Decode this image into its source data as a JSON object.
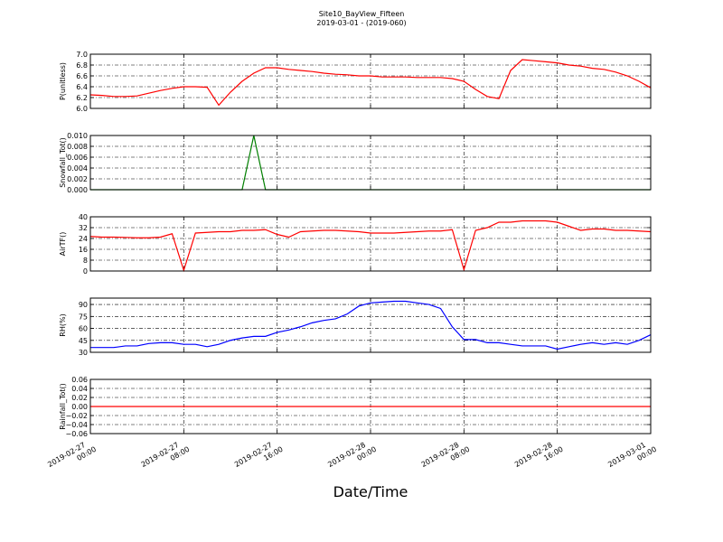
{
  "chart_data": [
    {
      "type": "line",
      "title": "Site10_BayView_Fifteen",
      "subtitle": "2019-03-01 - (2019-060)",
      "ylabel": "P(unitless)",
      "xlim": [
        "2019-02-27 00:00",
        "2019-03-01 00:00"
      ],
      "ylim": [
        6.0,
        7.0
      ],
      "yticks": [
        {
          "value": 6.0,
          "label": "6.0"
        },
        {
          "value": 6.2,
          "label": "6.2"
        },
        {
          "value": 6.4,
          "label": "6.4"
        },
        {
          "value": 6.6,
          "label": "6.6"
        },
        {
          "value": 6.8,
          "label": "6.8"
        },
        {
          "value": 7.0,
          "label": "7.0"
        }
      ],
      "grid": true,
      "color": "#ff0000",
      "x": [
        "2019-02-27 00:00",
        "2019-02-27 01:00",
        "2019-02-27 02:00",
        "2019-02-27 03:00",
        "2019-02-27 04:00",
        "2019-02-27 05:00",
        "2019-02-27 06:00",
        "2019-02-27 07:00",
        "2019-02-27 08:00",
        "2019-02-27 09:00",
        "2019-02-27 10:00",
        "2019-02-27 11:00",
        "2019-02-27 12:00",
        "2019-02-27 13:00",
        "2019-02-27 14:00",
        "2019-02-27 15:00",
        "2019-02-27 16:00",
        "2019-02-27 17:00",
        "2019-02-27 18:00",
        "2019-02-27 19:00",
        "2019-02-27 20:00",
        "2019-02-27 21:00",
        "2019-02-27 22:00",
        "2019-02-27 23:00",
        "2019-02-28 00:00",
        "2019-02-28 01:00",
        "2019-02-28 02:00",
        "2019-02-28 03:00",
        "2019-02-28 04:00",
        "2019-02-28 05:00",
        "2019-02-28 06:00",
        "2019-02-28 07:00",
        "2019-02-28 08:00",
        "2019-02-28 09:00",
        "2019-02-28 10:00",
        "2019-02-28 11:00",
        "2019-02-28 12:00",
        "2019-02-28 13:00",
        "2019-02-28 14:00",
        "2019-02-28 15:00",
        "2019-02-28 16:00",
        "2019-02-28 17:00",
        "2019-02-28 18:00",
        "2019-02-28 19:00",
        "2019-02-28 20:00",
        "2019-02-28 21:00",
        "2019-02-28 22:00",
        "2019-02-28 23:00",
        "2019-03-01 00:00"
      ],
      "values": [
        6.25,
        6.24,
        6.22,
        6.22,
        6.23,
        6.28,
        6.33,
        6.37,
        6.4,
        6.4,
        6.39,
        6.06,
        6.3,
        6.5,
        6.65,
        6.75,
        6.75,
        6.72,
        6.7,
        6.68,
        6.65,
        6.63,
        6.62,
        6.6,
        6.6,
        6.58,
        6.58,
        6.58,
        6.57,
        6.57,
        6.57,
        6.55,
        6.5,
        6.35,
        6.22,
        6.18,
        6.7,
        6.9,
        6.88,
        6.86,
        6.84,
        6.8,
        6.78,
        6.74,
        6.72,
        6.67,
        6.6,
        6.5,
        6.38
      ]
    },
    {
      "type": "line",
      "ylabel": "Snowfall_Tot()",
      "xlim": [
        "2019-02-27 00:00",
        "2019-03-01 00:00"
      ],
      "ylim": [
        0,
        0.01
      ],
      "yticks": [
        {
          "value": 0,
          "label": "0.000"
        },
        {
          "value": 0.002,
          "label": "0.002"
        },
        {
          "value": 0.004,
          "label": "0.004"
        },
        {
          "value": 0.006,
          "label": "0.006"
        },
        {
          "value": 0.008,
          "label": "0.008"
        },
        {
          "value": 0.01,
          "label": "0.010"
        }
      ],
      "grid": true,
      "color": "#007f00",
      "x": [
        "2019-02-27 00:00",
        "2019-02-27 01:00",
        "2019-02-27 02:00",
        "2019-02-27 03:00",
        "2019-02-27 04:00",
        "2019-02-27 05:00",
        "2019-02-27 06:00",
        "2019-02-27 07:00",
        "2019-02-27 08:00",
        "2019-02-27 09:00",
        "2019-02-27 10:00",
        "2019-02-27 11:00",
        "2019-02-27 12:00",
        "2019-02-27 13:00",
        "2019-02-27 14:00",
        "2019-02-27 15:00",
        "2019-02-27 16:00",
        "2019-02-27 17:00",
        "2019-02-27 18:00",
        "2019-02-27 19:00",
        "2019-02-27 20:00",
        "2019-02-27 21:00",
        "2019-02-27 22:00",
        "2019-02-27 23:00",
        "2019-02-28 00:00",
        "2019-02-28 01:00",
        "2019-02-28 02:00",
        "2019-02-28 03:00",
        "2019-02-28 04:00",
        "2019-02-28 05:00",
        "2019-02-28 06:00",
        "2019-02-28 07:00",
        "2019-02-28 08:00",
        "2019-02-28 09:00",
        "2019-02-28 10:00",
        "2019-02-28 11:00",
        "2019-02-28 12:00",
        "2019-02-28 13:00",
        "2019-02-28 14:00",
        "2019-02-28 15:00",
        "2019-02-28 16:00",
        "2019-02-28 17:00",
        "2019-02-28 18:00",
        "2019-02-28 19:00",
        "2019-02-28 20:00",
        "2019-02-28 21:00",
        "2019-02-28 22:00",
        "2019-02-28 23:00",
        "2019-03-01 00:00"
      ],
      "values": [
        0,
        0,
        0,
        0,
        0,
        0,
        0,
        0,
        0,
        0,
        0,
        0,
        0,
        0,
        0.01,
        0,
        0,
        0,
        0,
        0,
        0,
        0,
        0,
        0,
        0,
        0,
        0,
        0,
        0,
        0,
        0,
        0,
        0,
        0,
        0,
        0,
        0,
        0,
        0,
        0,
        0,
        0,
        0,
        0,
        0,
        0,
        0,
        0,
        0
      ]
    },
    {
      "type": "line",
      "ylabel": "AirTF()",
      "xlim": [
        "2019-02-27 00:00",
        "2019-03-01 00:00"
      ],
      "ylim": [
        0,
        40
      ],
      "yticks": [
        0,
        8,
        16,
        24,
        32,
        40
      ],
      "grid": true,
      "color": "#ff0000",
      "x": [
        "2019-02-27 00:00",
        "2019-02-27 01:00",
        "2019-02-27 02:00",
        "2019-02-27 03:00",
        "2019-02-27 04:00",
        "2019-02-27 05:00",
        "2019-02-27 06:00",
        "2019-02-27 07:00",
        "2019-02-27 08:00",
        "2019-02-27 09:00",
        "2019-02-27 10:00",
        "2019-02-27 11:00",
        "2019-02-27 12:00",
        "2019-02-27 13:00",
        "2019-02-27 14:00",
        "2019-02-27 15:00",
        "2019-02-27 16:00",
        "2019-02-27 17:00",
        "2019-02-27 18:00",
        "2019-02-27 19:00",
        "2019-02-27 20:00",
        "2019-02-27 21:00",
        "2019-02-27 22:00",
        "2019-02-27 23:00",
        "2019-02-28 00:00",
        "2019-02-28 01:00",
        "2019-02-28 02:00",
        "2019-02-28 03:00",
        "2019-02-28 04:00",
        "2019-02-28 05:00",
        "2019-02-28 06:00",
        "2019-02-28 07:00",
        "2019-02-28 08:00",
        "2019-02-28 09:00",
        "2019-02-28 10:00",
        "2019-02-28 11:00",
        "2019-02-28 12:00",
        "2019-02-28 13:00",
        "2019-02-28 14:00",
        "2019-02-28 15:00",
        "2019-02-28 16:00",
        "2019-02-28 17:00",
        "2019-02-28 18:00",
        "2019-02-28 19:00",
        "2019-02-28 20:00",
        "2019-02-28 21:00",
        "2019-02-28 22:00",
        "2019-02-28 23:00",
        "2019-03-01 00:00"
      ],
      "values": [
        25.5,
        25,
        25,
        24.8,
        24.5,
        24.5,
        25,
        27.5,
        0.5,
        28,
        28.5,
        29,
        29,
        30,
        30,
        30.5,
        27,
        25,
        29,
        29.5,
        30,
        30,
        29.5,
        29,
        28,
        28,
        28,
        28.5,
        29,
        29.5,
        29.5,
        30.5,
        1,
        30,
        32,
        36,
        36,
        37,
        37,
        37,
        36,
        33,
        30,
        31,
        31,
        30,
        30,
        29.5,
        29
      ]
    },
    {
      "type": "line",
      "ylabel": "RH(%)",
      "xlim": [
        "2019-02-27 00:00",
        "2019-03-01 00:00"
      ],
      "ylim": [
        30,
        98
      ],
      "yticks": [
        30,
        45,
        60,
        75,
        90
      ],
      "grid": true,
      "color": "#0000ff",
      "x": [
        "2019-02-27 00:00",
        "2019-02-27 01:00",
        "2019-02-27 02:00",
        "2019-02-27 03:00",
        "2019-02-27 04:00",
        "2019-02-27 05:00",
        "2019-02-27 06:00",
        "2019-02-27 07:00",
        "2019-02-27 08:00",
        "2019-02-27 09:00",
        "2019-02-27 10:00",
        "2019-02-27 11:00",
        "2019-02-27 12:00",
        "2019-02-27 13:00",
        "2019-02-27 14:00",
        "2019-02-27 15:00",
        "2019-02-27 16:00",
        "2019-02-27 17:00",
        "2019-02-27 18:00",
        "2019-02-27 19:00",
        "2019-02-27 20:00",
        "2019-02-27 21:00",
        "2019-02-27 22:00",
        "2019-02-27 23:00",
        "2019-02-28 00:00",
        "2019-02-28 01:00",
        "2019-02-28 02:00",
        "2019-02-28 03:00",
        "2019-02-28 04:00",
        "2019-02-28 05:00",
        "2019-02-28 06:00",
        "2019-02-28 07:00",
        "2019-02-28 08:00",
        "2019-02-28 09:00",
        "2019-02-28 10:00",
        "2019-02-28 11:00",
        "2019-02-28 12:00",
        "2019-02-28 13:00",
        "2019-02-28 14:00",
        "2019-02-28 15:00",
        "2019-02-28 16:00",
        "2019-02-28 17:00",
        "2019-02-28 18:00",
        "2019-02-28 19:00",
        "2019-02-28 20:00",
        "2019-02-28 21:00",
        "2019-02-28 22:00",
        "2019-02-28 23:00",
        "2019-03-01 00:00"
      ],
      "values": [
        36,
        36,
        36,
        38,
        38,
        41,
        42,
        42,
        40,
        40,
        37,
        40,
        45,
        48,
        50,
        50,
        55,
        58,
        62,
        67,
        70,
        72,
        78,
        88,
        92,
        93,
        94,
        94,
        92,
        90,
        85,
        62,
        46,
        46,
        42,
        42,
        40,
        38,
        38,
        38,
        34,
        37,
        40,
        42,
        40,
        42,
        40,
        45,
        52
      ]
    },
    {
      "type": "line",
      "ylabel": "Rainfall_Tot()",
      "xlabel": "Date/Time",
      "xlim": [
        "2019-02-27 00:00",
        "2019-03-01 00:00"
      ],
      "ylim": [
        -0.06,
        0.06
      ],
      "yticks": [
        {
          "value": -0.06,
          "label": "−0.06"
        },
        {
          "value": -0.04,
          "label": "−0.04"
        },
        {
          "value": -0.02,
          "label": "−0.02"
        },
        {
          "value": 0,
          "label": "0.00"
        },
        {
          "value": 0.02,
          "label": "0.02"
        },
        {
          "value": 0.04,
          "label": "0.04"
        },
        {
          "value": 0.06,
          "label": "0.06"
        }
      ],
      "xticks": [
        {
          "value": "2019-02-27 00:00",
          "label": "2019-02-27\n00:00"
        },
        {
          "value": "2019-02-27 08:00",
          "label": "2019-02-27\n08:00"
        },
        {
          "value": "2019-02-27 16:00",
          "label": "2019-02-27\n16:00"
        },
        {
          "value": "2019-02-28 00:00",
          "label": "2019-02-28\n00:00"
        },
        {
          "value": "2019-02-28 08:00",
          "label": "2019-02-28\n08:00"
        },
        {
          "value": "2019-02-28 16:00",
          "label": "2019-02-28\n16:00"
        },
        {
          "value": "2019-03-01 00:00",
          "label": "2019-03-01\n00:00"
        }
      ],
      "grid": true,
      "color": "#ff0000",
      "x": [
        "2019-02-27 00:00",
        "2019-02-27 01:00",
        "2019-02-27 02:00",
        "2019-02-27 03:00",
        "2019-02-27 04:00",
        "2019-02-27 05:00",
        "2019-02-27 06:00",
        "2019-02-27 07:00",
        "2019-02-27 08:00",
        "2019-02-27 09:00",
        "2019-02-27 10:00",
        "2019-02-27 11:00",
        "2019-02-27 12:00",
        "2019-02-27 13:00",
        "2019-02-27 14:00",
        "2019-02-27 15:00",
        "2019-02-27 16:00",
        "2019-02-27 17:00",
        "2019-02-27 18:00",
        "2019-02-27 19:00",
        "2019-02-27 20:00",
        "2019-02-27 21:00",
        "2019-02-27 22:00",
        "2019-02-27 23:00",
        "2019-02-28 00:00",
        "2019-02-28 01:00",
        "2019-02-28 02:00",
        "2019-02-28 03:00",
        "2019-02-28 04:00",
        "2019-02-28 05:00",
        "2019-02-28 06:00",
        "2019-02-28 07:00",
        "2019-02-28 08:00",
        "2019-02-28 09:00",
        "2019-02-28 10:00",
        "2019-02-28 11:00",
        "2019-02-28 12:00",
        "2019-02-28 13:00",
        "2019-02-28 14:00",
        "2019-02-28 15:00",
        "2019-02-28 16:00",
        "2019-02-28 17:00",
        "2019-02-28 18:00",
        "2019-02-28 19:00",
        "2019-02-28 20:00",
        "2019-02-28 21:00",
        "2019-02-28 22:00",
        "2019-02-28 23:00",
        "2019-03-01 00:00"
      ],
      "values": [
        0,
        0,
        0,
        0,
        0,
        0,
        0,
        0,
        0,
        0,
        0,
        0,
        0,
        0,
        0,
        0,
        0,
        0,
        0,
        0,
        0,
        0,
        0,
        0,
        0,
        0,
        0,
        0,
        0,
        0,
        0,
        0,
        0,
        0,
        0,
        0,
        0,
        0,
        0,
        0,
        0,
        0,
        0,
        0,
        0,
        0,
        0,
        0,
        0
      ]
    }
  ]
}
